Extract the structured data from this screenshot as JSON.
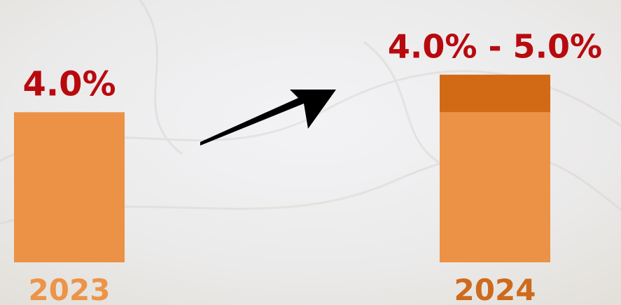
{
  "chart_data": {
    "type": "stacked_bar",
    "categories": [
      "2023",
      "2024"
    ],
    "category_colors": [
      "#ec9448",
      "#cf6a1c"
    ],
    "series": [
      {
        "color": "#ec9246",
        "values": [
          4.0,
          4.0
        ]
      },
      {
        "color": "#d26915",
        "values": [
          null,
          1.0
        ]
      }
    ],
    "value_labels": [
      "4.0%",
      "4.0% - 5.0%"
    ],
    "label_color": "#b80a0e",
    "ylim": [
      0,
      5.2
    ]
  }
}
